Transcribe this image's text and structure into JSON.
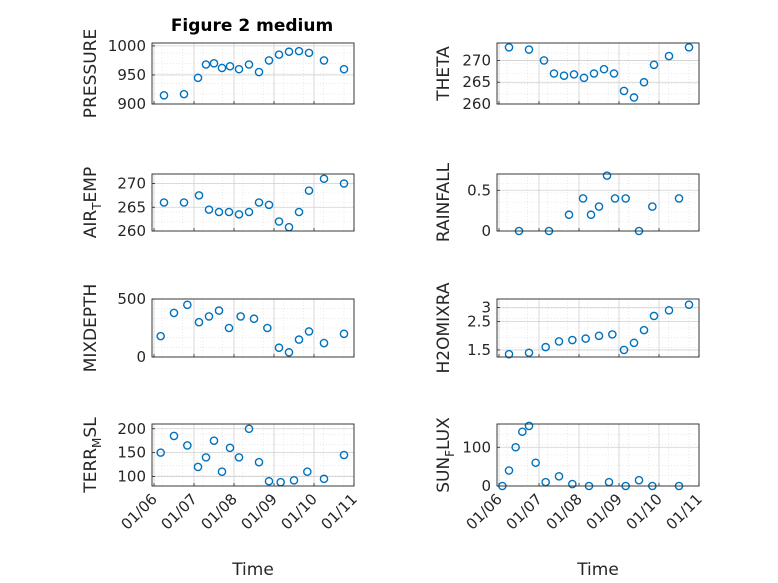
{
  "figure": {
    "title": "Figure 2 medium",
    "marker_color": "#0072BD"
  },
  "chart_data": [
    {
      "type": "scatter",
      "ylabel": "PRESSURE",
      "ylim": [
        900,
        1005
      ],
      "yticks": [
        900,
        950,
        1000
      ],
      "ytick_labels": [
        "900",
        "950",
        "1000"
      ],
      "grid": true,
      "x": [
        "01/06",
        "01/06",
        "01/07",
        "01/07",
        "01/07",
        "01/07",
        "01/07",
        "01/08",
        "01/08",
        "01/08",
        "01/08",
        "01/09",
        "01/09",
        "01/09",
        "01/09",
        "01/10",
        "01/10"
      ],
      "y": [
        915,
        917,
        945,
        968,
        970,
        962,
        965,
        960,
        968,
        955,
        975,
        985,
        990,
        991,
        988,
        975,
        960
      ]
    },
    {
      "type": "scatter",
      "ylabel": "THETA",
      "ylim": [
        260,
        274
      ],
      "yticks": [
        260,
        265,
        270
      ],
      "ytick_labels": [
        "260",
        "265",
        "270"
      ],
      "grid": true,
      "x": [
        "01/06",
        "01/06",
        "01/07",
        "01/07",
        "01/07",
        "01/07",
        "01/08",
        "01/08",
        "01/08",
        "01/08",
        "01/09",
        "01/09",
        "01/09",
        "01/09",
        "01/10",
        "01/10"
      ],
      "y": [
        273,
        272.5,
        270,
        267,
        266.5,
        266.8,
        266,
        267,
        268,
        267,
        263,
        261.5,
        265,
        269,
        271,
        273
      ]
    },
    {
      "type": "scatter",
      "ylabel": "AIR_TEMP",
      "ylabel_base": "AIR",
      "ylabel_sub": "T",
      "ylabel_rest": "EMP",
      "ylim": [
        260,
        272
      ],
      "yticks": [
        260,
        265,
        270
      ],
      "ytick_labels": [
        "260",
        "265",
        "270"
      ],
      "grid": true,
      "x": [
        "01/06",
        "01/06",
        "01/07",
        "01/07",
        "01/07",
        "01/07",
        "01/08",
        "01/08",
        "01/08",
        "01/08",
        "01/09",
        "01/09",
        "01/09",
        "01/09",
        "01/10",
        "01/10"
      ],
      "y": [
        266,
        266,
        267.5,
        264.5,
        264,
        264,
        263.5,
        264,
        266,
        265.5,
        262,
        260.8,
        264,
        268.5,
        271,
        270
      ]
    },
    {
      "type": "scatter",
      "ylabel": "RAINFALL",
      "ylim": [
        0,
        0.7
      ],
      "yticks": [
        0,
        0.5
      ],
      "ytick_labels": [
        "0",
        "0.5"
      ],
      "grid": true,
      "x": [
        "01/06",
        "01/07",
        "01/07",
        "01/08",
        "01/08",
        "01/08",
        "01/08",
        "01/08",
        "01/09",
        "01/09",
        "01/09",
        "01/10"
      ],
      "y": [
        0,
        0,
        0.2,
        0.4,
        0.2,
        0.3,
        0.68,
        0.4,
        0.4,
        0,
        0.3,
        0.4
      ]
    },
    {
      "type": "scatter",
      "ylabel": "MIXDEPTH",
      "ylim": [
        0,
        500
      ],
      "yticks": [
        0,
        500
      ],
      "ytick_labels": [
        "0",
        "500"
      ],
      "grid": true,
      "x": [
        "01/06",
        "01/06",
        "01/06",
        "01/07",
        "01/07",
        "01/07",
        "01/07",
        "01/08",
        "01/08",
        "01/08",
        "01/09",
        "01/09",
        "01/09",
        "01/09",
        "01/10",
        "01/10"
      ],
      "y": [
        180,
        380,
        450,
        300,
        350,
        400,
        250,
        350,
        330,
        250,
        80,
        40,
        150,
        220,
        120,
        200
      ]
    },
    {
      "type": "scatter",
      "ylabel": "H2OMIXRA",
      "ylim": [
        1.25,
        3.3
      ],
      "yticks": [
        1.5,
        2.5,
        3
      ],
      "ytick_labels": [
        "1.5",
        "2.5",
        "3"
      ],
      "grid": true,
      "x": [
        "01/06",
        "01/06",
        "01/07",
        "01/07",
        "01/07",
        "01/08",
        "01/08",
        "01/08",
        "01/09",
        "01/09",
        "01/09",
        "01/09",
        "01/10",
        "01/10"
      ],
      "y": [
        1.35,
        1.4,
        1.6,
        1.8,
        1.85,
        1.9,
        2.0,
        2.05,
        1.5,
        1.75,
        2.2,
        2.7,
        2.9,
        3.1
      ]
    },
    {
      "type": "scatter",
      "ylabel": "TERR_MSL",
      "ylabel_base": "TERR",
      "ylabel_sub": "M",
      "ylabel_rest": "SL",
      "ylim": [
        80,
        210
      ],
      "yticks": [
        100,
        150,
        200
      ],
      "ytick_labels": [
        "100",
        "150",
        "200"
      ],
      "grid": true,
      "x": [
        "01/06",
        "01/06",
        "01/06",
        "01/07",
        "01/07",
        "01/07",
        "01/07",
        "01/07",
        "01/08",
        "01/08",
        "01/08",
        "01/08",
        "01/09",
        "01/09",
        "01/09",
        "01/10",
        "01/10"
      ],
      "y": [
        150,
        185,
        165,
        120,
        140,
        175,
        110,
        160,
        140,
        200,
        130,
        90,
        88,
        92,
        110,
        95,
        145
      ]
    },
    {
      "type": "scatter",
      "ylabel": "SUN_FLUX",
      "ylabel_base": "SUN",
      "ylabel_sub": "F",
      "ylabel_rest": "LUX",
      "ylim": [
        0,
        160
      ],
      "yticks": [
        0,
        100
      ],
      "ytick_labels": [
        "0",
        "100"
      ],
      "grid": true,
      "x": [
        "01/06",
        "01/06",
        "01/06",
        "01/06",
        "01/06",
        "01/06",
        "01/07",
        "01/07",
        "01/07",
        "01/08",
        "01/08",
        "01/09",
        "01/09",
        "01/09",
        "01/10"
      ],
      "y": [
        0,
        40,
        100,
        140,
        155,
        60,
        10,
        25,
        5,
        0,
        10,
        0,
        15,
        0,
        0
      ]
    }
  ],
  "x_axis": {
    "label": "Time",
    "ticks": [
      "01/06",
      "01/07",
      "01/08",
      "01/09",
      "01/10",
      "01/11"
    ]
  }
}
